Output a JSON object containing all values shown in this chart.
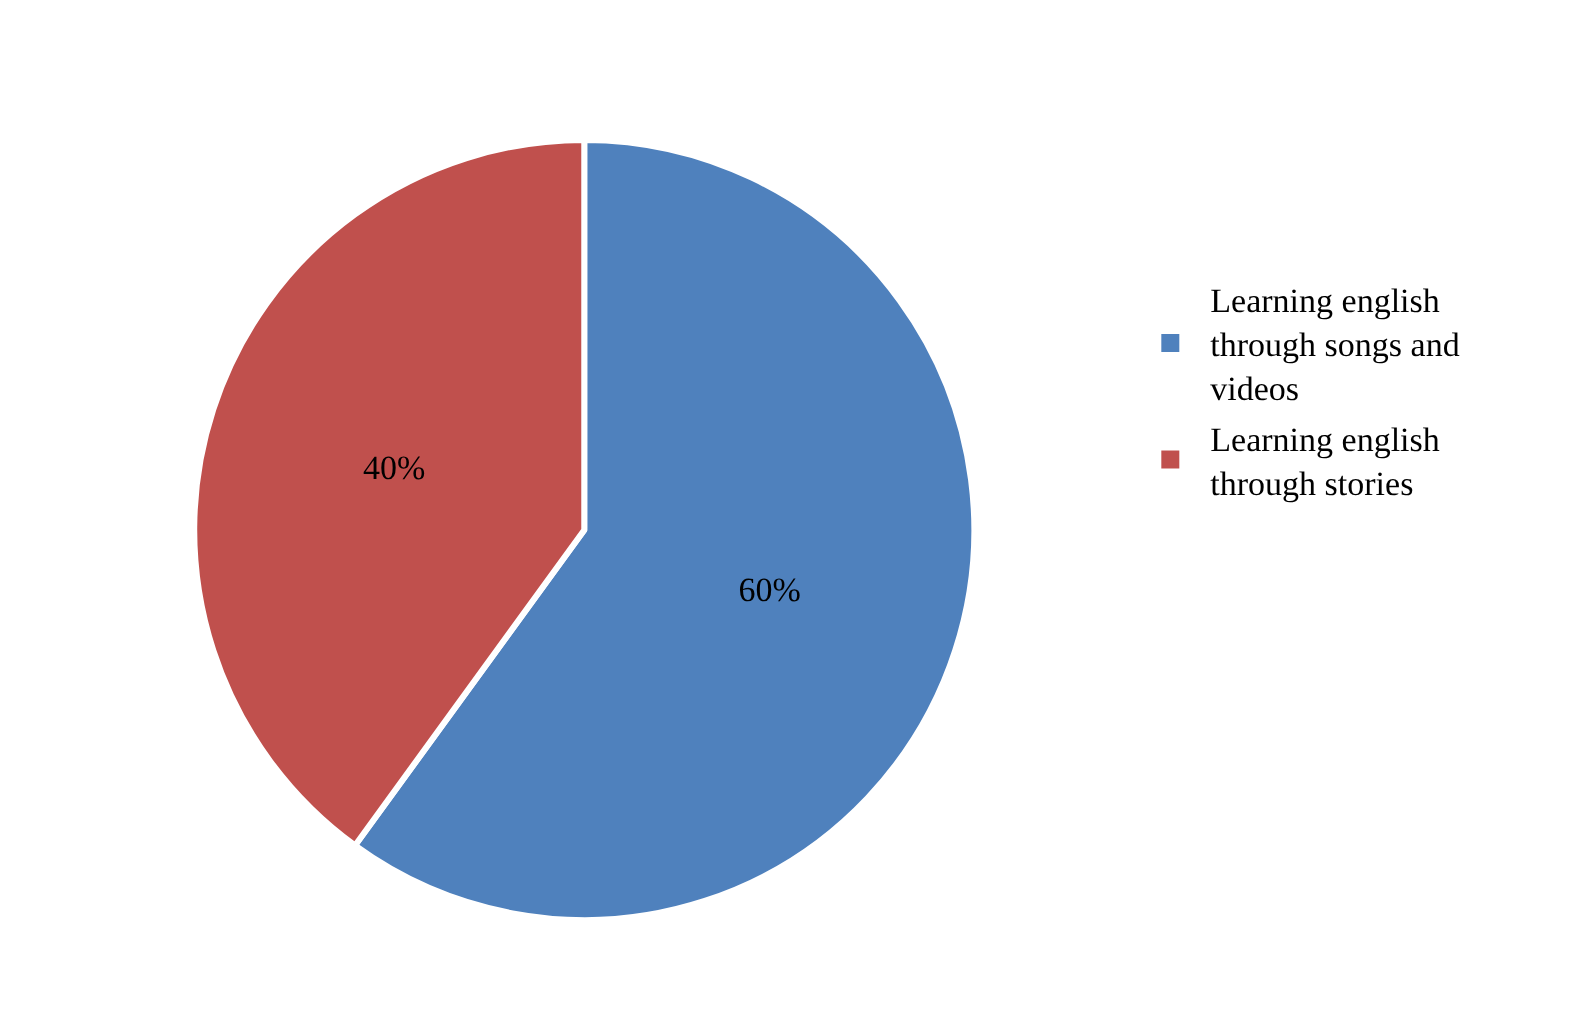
{
  "chart_data": {
    "type": "pie",
    "categories": [
      "Learning english through songs and videos",
      "Learning english through stories"
    ],
    "values": [
      60,
      40
    ],
    "colors": [
      "#4f81bd",
      "#c0504d"
    ],
    "value_labels": [
      "60%",
      "40%"
    ],
    "legend": "right"
  }
}
